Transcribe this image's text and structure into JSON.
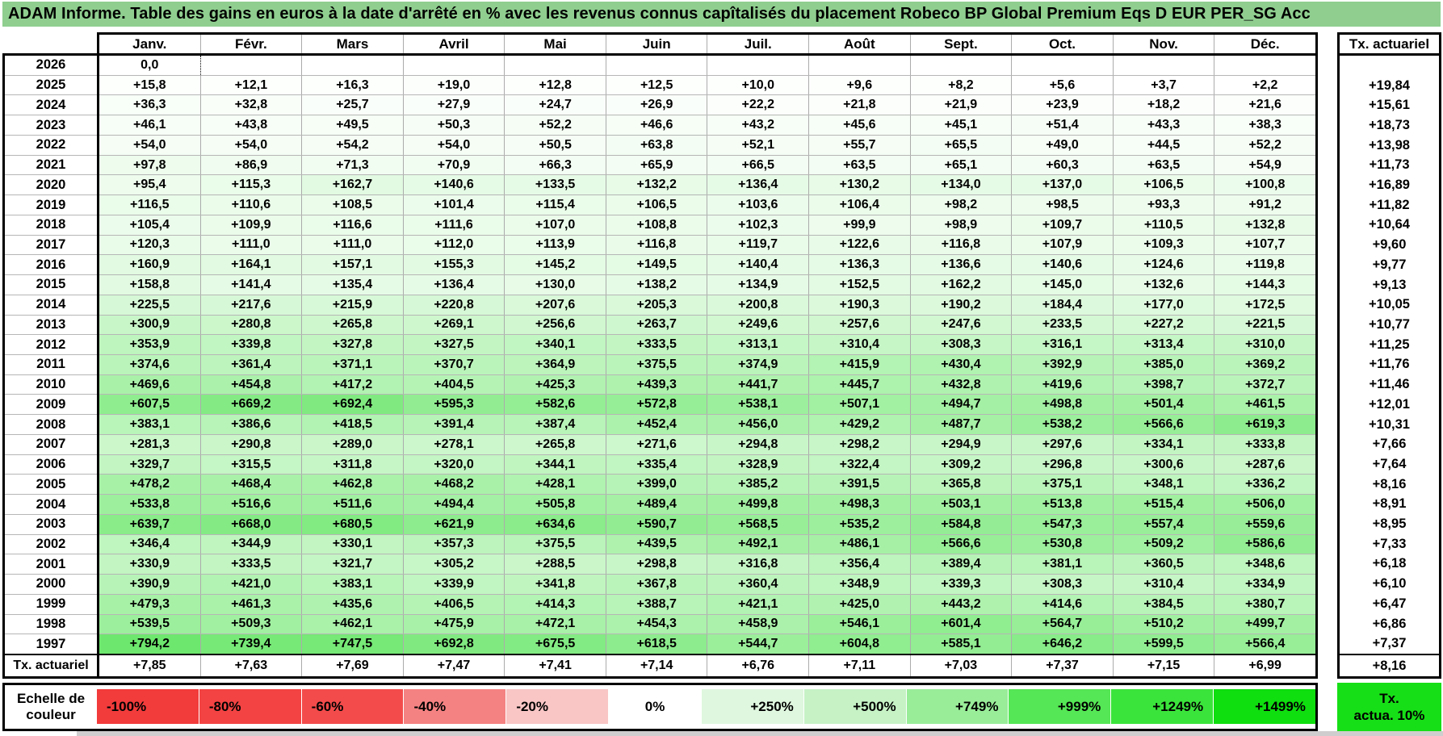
{
  "title": "ADAM Informe. Table des gains en euros à la date d'arrêté en % avec les revenus connus capîtalisés du placement Robeco BP Global Premium Eqs D EUR PER_SG Acc",
  "months": [
    "Janv.",
    "Févr.",
    "Mars",
    "Avril",
    "Mai",
    "Juin",
    "Juil.",
    "Août",
    "Sept.",
    "Oct.",
    "Nov.",
    "Déc."
  ],
  "tx_header": "Tx. actuariel",
  "rows": [
    {
      "year": "2026",
      "values": [
        "0,0",
        "",
        "",
        "",
        "",
        "",
        "",
        "",
        "",
        "",
        "",
        ""
      ],
      "tx": ""
    },
    {
      "year": "2025",
      "values": [
        "+15,8",
        "+12,1",
        "+16,3",
        "+19,0",
        "+12,8",
        "+12,5",
        "+10,0",
        "+9,6",
        "+8,2",
        "+5,6",
        "+3,7",
        "+2,2"
      ],
      "tx": "+19,84"
    },
    {
      "year": "2024",
      "values": [
        "+36,3",
        "+32,8",
        "+25,7",
        "+27,9",
        "+24,7",
        "+26,9",
        "+22,2",
        "+21,8",
        "+21,9",
        "+23,9",
        "+18,2",
        "+21,6"
      ],
      "tx": "+15,61"
    },
    {
      "year": "2023",
      "values": [
        "+46,1",
        "+43,8",
        "+49,5",
        "+50,3",
        "+52,2",
        "+46,6",
        "+43,2",
        "+45,6",
        "+45,1",
        "+51,4",
        "+43,3",
        "+38,3"
      ],
      "tx": "+18,73"
    },
    {
      "year": "2022",
      "values": [
        "+54,0",
        "+54,0",
        "+54,2",
        "+54,0",
        "+50,5",
        "+63,8",
        "+52,1",
        "+55,7",
        "+65,5",
        "+49,0",
        "+44,5",
        "+52,2"
      ],
      "tx": "+13,98"
    },
    {
      "year": "2021",
      "values": [
        "+97,8",
        "+86,9",
        "+71,3",
        "+70,9",
        "+66,3",
        "+65,9",
        "+66,5",
        "+63,5",
        "+65,1",
        "+60,3",
        "+63,5",
        "+54,9"
      ],
      "tx": "+11,73"
    },
    {
      "year": "2020",
      "values": [
        "+95,4",
        "+115,3",
        "+162,7",
        "+140,6",
        "+133,5",
        "+132,2",
        "+136,4",
        "+130,2",
        "+134,0",
        "+137,0",
        "+106,5",
        "+100,8"
      ],
      "tx": "+16,89"
    },
    {
      "year": "2019",
      "values": [
        "+116,5",
        "+110,6",
        "+108,5",
        "+101,4",
        "+115,4",
        "+106,5",
        "+103,6",
        "+106,4",
        "+98,2",
        "+98,5",
        "+93,3",
        "+91,2"
      ],
      "tx": "+11,82"
    },
    {
      "year": "2018",
      "values": [
        "+105,4",
        "+109,9",
        "+116,6",
        "+111,6",
        "+107,0",
        "+108,8",
        "+102,3",
        "+99,9",
        "+98,9",
        "+109,7",
        "+110,5",
        "+132,8"
      ],
      "tx": "+10,64"
    },
    {
      "year": "2017",
      "values": [
        "+120,3",
        "+111,0",
        "+111,0",
        "+112,0",
        "+113,9",
        "+116,8",
        "+119,7",
        "+122,6",
        "+116,8",
        "+107,9",
        "+109,3",
        "+107,7"
      ],
      "tx": "+9,60"
    },
    {
      "year": "2016",
      "values": [
        "+160,9",
        "+164,1",
        "+157,1",
        "+155,3",
        "+145,2",
        "+149,5",
        "+140,4",
        "+136,3",
        "+136,6",
        "+140,6",
        "+124,6",
        "+119,8"
      ],
      "tx": "+9,77"
    },
    {
      "year": "2015",
      "values": [
        "+158,8",
        "+141,4",
        "+135,4",
        "+136,4",
        "+130,0",
        "+138,2",
        "+134,9",
        "+152,5",
        "+162,2",
        "+145,0",
        "+132,6",
        "+144,3"
      ],
      "tx": "+9,13"
    },
    {
      "year": "2014",
      "values": [
        "+225,5",
        "+217,6",
        "+215,9",
        "+220,8",
        "+207,6",
        "+205,3",
        "+200,8",
        "+190,3",
        "+190,2",
        "+184,4",
        "+177,0",
        "+172,5"
      ],
      "tx": "+10,05"
    },
    {
      "year": "2013",
      "values": [
        "+300,9",
        "+280,8",
        "+265,8",
        "+269,1",
        "+256,6",
        "+263,7",
        "+249,6",
        "+257,6",
        "+247,6",
        "+233,5",
        "+227,2",
        "+221,5"
      ],
      "tx": "+10,77"
    },
    {
      "year": "2012",
      "values": [
        "+353,9",
        "+339,8",
        "+327,8",
        "+327,5",
        "+340,1",
        "+333,5",
        "+313,1",
        "+310,4",
        "+308,3",
        "+316,1",
        "+313,4",
        "+310,0"
      ],
      "tx": "+11,25"
    },
    {
      "year": "2011",
      "values": [
        "+374,6",
        "+361,4",
        "+371,1",
        "+370,7",
        "+364,9",
        "+375,5",
        "+374,9",
        "+415,9",
        "+430,4",
        "+392,9",
        "+385,0",
        "+369,2"
      ],
      "tx": "+11,76"
    },
    {
      "year": "2010",
      "values": [
        "+469,6",
        "+454,8",
        "+417,2",
        "+404,5",
        "+425,3",
        "+439,3",
        "+441,7",
        "+445,7",
        "+432,8",
        "+419,6",
        "+398,7",
        "+372,7"
      ],
      "tx": "+11,46"
    },
    {
      "year": "2009",
      "values": [
        "+607,5",
        "+669,2",
        "+692,4",
        "+595,3",
        "+582,6",
        "+572,8",
        "+538,1",
        "+507,1",
        "+494,7",
        "+498,8",
        "+501,4",
        "+461,5"
      ],
      "tx": "+12,01"
    },
    {
      "year": "2008",
      "values": [
        "+383,1",
        "+386,6",
        "+418,5",
        "+391,4",
        "+387,4",
        "+452,4",
        "+456,0",
        "+429,2",
        "+487,7",
        "+538,2",
        "+566,6",
        "+619,3"
      ],
      "tx": "+10,31"
    },
    {
      "year": "2007",
      "values": [
        "+281,3",
        "+290,8",
        "+289,0",
        "+278,1",
        "+265,8",
        "+271,6",
        "+294,8",
        "+298,2",
        "+294,9",
        "+297,6",
        "+334,1",
        "+333,8"
      ],
      "tx": "+7,66"
    },
    {
      "year": "2006",
      "values": [
        "+329,7",
        "+315,5",
        "+311,8",
        "+320,0",
        "+344,1",
        "+335,4",
        "+328,9",
        "+322,4",
        "+309,2",
        "+296,8",
        "+300,6",
        "+287,6"
      ],
      "tx": "+7,64"
    },
    {
      "year": "2005",
      "values": [
        "+478,2",
        "+468,4",
        "+462,8",
        "+468,2",
        "+428,1",
        "+399,0",
        "+385,2",
        "+391,5",
        "+365,8",
        "+375,1",
        "+348,1",
        "+336,2"
      ],
      "tx": "+8,16"
    },
    {
      "year": "2004",
      "values": [
        "+533,8",
        "+516,6",
        "+511,6",
        "+494,4",
        "+505,8",
        "+489,4",
        "+499,8",
        "+498,3",
        "+503,1",
        "+513,8",
        "+515,4",
        "+506,0"
      ],
      "tx": "+8,91"
    },
    {
      "year": "2003",
      "values": [
        "+639,7",
        "+668,0",
        "+680,5",
        "+621,9",
        "+634,6",
        "+590,7",
        "+568,5",
        "+535,2",
        "+584,8",
        "+547,3",
        "+557,4",
        "+559,6"
      ],
      "tx": "+8,95"
    },
    {
      "year": "2002",
      "values": [
        "+346,4",
        "+344,9",
        "+330,1",
        "+357,3",
        "+375,5",
        "+439,5",
        "+492,1",
        "+486,1",
        "+566,6",
        "+530,8",
        "+509,2",
        "+586,6"
      ],
      "tx": "+7,33"
    },
    {
      "year": "2001",
      "values": [
        "+330,9",
        "+333,5",
        "+321,7",
        "+305,2",
        "+288,5",
        "+298,8",
        "+316,8",
        "+356,4",
        "+389,4",
        "+381,1",
        "+360,5",
        "+348,6"
      ],
      "tx": "+6,18"
    },
    {
      "year": "2000",
      "values": [
        "+390,9",
        "+421,0",
        "+383,1",
        "+339,9",
        "+341,8",
        "+367,8",
        "+360,4",
        "+348,9",
        "+339,3",
        "+308,3",
        "+310,4",
        "+334,9"
      ],
      "tx": "+6,10"
    },
    {
      "year": "1999",
      "values": [
        "+479,3",
        "+461,3",
        "+435,6",
        "+406,5",
        "+414,3",
        "+388,7",
        "+421,1",
        "+425,0",
        "+443,2",
        "+414,6",
        "+384,5",
        "+380,7"
      ],
      "tx": "+6,47"
    },
    {
      "year": "1998",
      "values": [
        "+539,5",
        "+509,3",
        "+462,1",
        "+475,9",
        "+472,1",
        "+454,3",
        "+458,9",
        "+546,1",
        "+601,4",
        "+564,7",
        "+510,2",
        "+499,7"
      ],
      "tx": "+6,86"
    },
    {
      "year": "1997",
      "values": [
        "+794,2",
        "+739,4",
        "+747,5",
        "+692,8",
        "+675,5",
        "+618,5",
        "+544,7",
        "+604,8",
        "+585,1",
        "+646,2",
        "+599,5",
        "+566,4"
      ],
      "tx": "+7,37"
    }
  ],
  "tx_row": {
    "label": "Tx. actuariel",
    "values": [
      "+7,85",
      "+7,63",
      "+7,69",
      "+7,47",
      "+7,41",
      "+7,14",
      "+6,76",
      "+7,11",
      "+7,03",
      "+7,37",
      "+7,15",
      "+6,99"
    ],
    "tx": "+8,16"
  },
  "legend": {
    "label": "Echelle de couleur",
    "cells": [
      {
        "label": "-100%",
        "color": "#F23B3B",
        "align": "left"
      },
      {
        "label": "-80%",
        "color": "#F34343",
        "align": "left"
      },
      {
        "label": "-60%",
        "color": "#F34B4B",
        "align": "left"
      },
      {
        "label": "-40%",
        "color": "#F58282",
        "align": "left"
      },
      {
        "label": "-20%",
        "color": "#F9C5C5",
        "align": "left"
      },
      {
        "label": "0%",
        "color": "#FFFFFF",
        "align": "center"
      },
      {
        "label": "+250%",
        "color": "#DFF7DF",
        "align": "right"
      },
      {
        "label": "+500%",
        "color": "#C6F2C6",
        "align": "right"
      },
      {
        "label": "+749%",
        "color": "#99ED99",
        "align": "right"
      },
      {
        "label": "+999%",
        "color": "#55E755",
        "align": "right"
      },
      {
        "label": "+1249%",
        "color": "#3BE43B",
        "align": "right"
      },
      {
        "label": "+1499%",
        "color": "#0FDE0F",
        "align": "right"
      }
    ],
    "tx_box": {
      "line1": "Tx.",
      "line2": "actua. 10%",
      "color": "#17DF17"
    }
  },
  "colors": {
    "title_bg": "#8FCE8F",
    "grid_line": "#ABABAB",
    "grid_line_h": "#B6B6B6",
    "thick_border": "#000000",
    "value_scale_max_color": "#6CE76C",
    "value_scale_max_value": 800
  }
}
